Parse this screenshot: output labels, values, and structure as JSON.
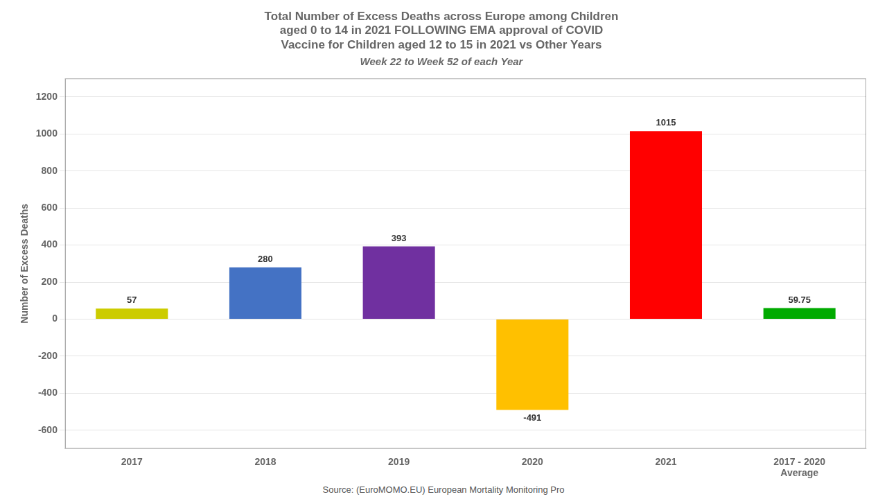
{
  "chart_data": {
    "type": "bar",
    "title": [
      "Total Number of Excess Deaths across Europe among Children",
      "aged 0 to 14 in 2021 FOLLOWING EMA approval of COVID",
      "Vaccine for Children aged 12 to 15 in 2021 vs Other Years"
    ],
    "subtitle": "Week 22 to Week 52 of each Year",
    "source": "Source: (EuroMOMO.EU) European Mortality Monitoring Pro",
    "y_label": "Number of Excess Deaths",
    "categories": [
      "2017",
      "2018",
      "2019",
      "2020",
      "2021",
      "2017 - 2020\nAverage"
    ],
    "values": [
      57,
      280,
      393,
      -491,
      1015,
      59.75
    ],
    "colors": [
      "#CCCC00",
      "#4472C4",
      "#7030A0",
      "#FFC000",
      "#FF0000",
      "#00AA00"
    ],
    "ylim": [
      -700,
      1300
    ],
    "yticks": [
      -600,
      -400,
      -200,
      0,
      200,
      400,
      600,
      800,
      1000,
      1200
    ],
    "grid": true,
    "data_labels": true
  }
}
